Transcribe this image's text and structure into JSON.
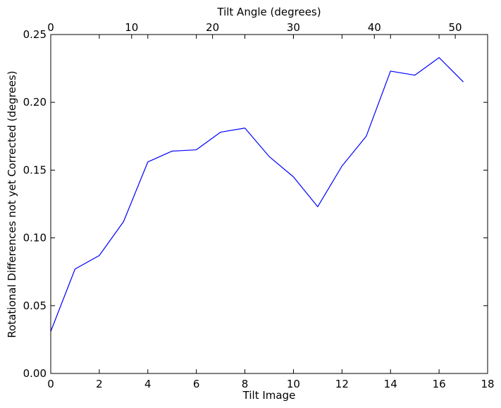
{
  "chart_data": {
    "type": "line",
    "xlabel": "Tilt Image",
    "x2label": "Tilt Angle (degrees)",
    "ylabel": "Rotational Differences not yet Corrected (degrees)",
    "xlim": [
      0,
      18
    ],
    "x2lim": [
      0,
      54
    ],
    "ylim": [
      0,
      0.25
    ],
    "grid": false,
    "xticks": [
      "0",
      "2",
      "4",
      "6",
      "8",
      "10",
      "12",
      "14",
      "16",
      "18"
    ],
    "x2ticks": [
      "0",
      "10",
      "20",
      "30",
      "40",
      "50"
    ],
    "yticks": [
      "0.00",
      "0.05",
      "0.10",
      "0.15",
      "0.20",
      "0.25"
    ],
    "series": [
      {
        "color": "#0000ff",
        "x": [
          0,
          1,
          2,
          3,
          4,
          5,
          6,
          7,
          8,
          9,
          10,
          11,
          12,
          13,
          14,
          15,
          16,
          17
        ],
        "y": [
          0.031,
          0.077,
          0.087,
          0.112,
          0.156,
          0.164,
          0.165,
          0.178,
          0.181,
          0.16,
          0.145,
          0.123,
          0.153,
          0.175,
          0.223,
          0.22,
          0.233,
          0.215
        ]
      }
    ]
  }
}
